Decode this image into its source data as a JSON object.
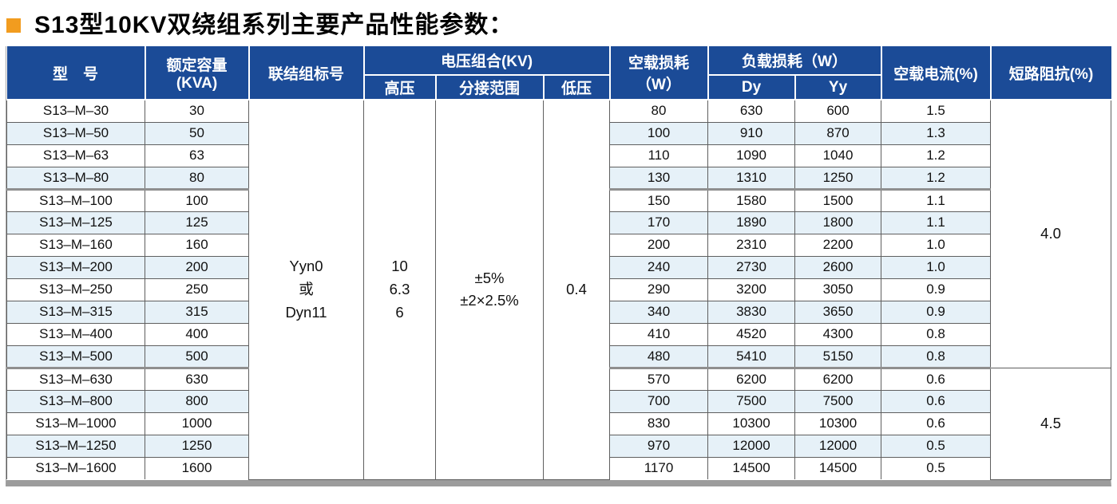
{
  "title": "S13型10KV双绕组系列主要产品性能参数：",
  "colors": {
    "header_bg": "#1b4b97",
    "header_text": "#ffffff",
    "row_stripe": "#e6f1f8",
    "title_bullet": "#f29c1f",
    "bottom_bar": "#9c9c9c"
  },
  "table": {
    "header": {
      "model": "型　号",
      "rated_capacity": "额定容量\n(KVA)",
      "connection_group": "联结组标号",
      "voltage_combination": "电压组合(KV)",
      "high_voltage": "高压",
      "tap_range": "分接范围",
      "low_voltage": "低压",
      "no_load_loss": "空载损耗\n（W）",
      "load_loss": "负载损耗（W）",
      "dy": "Dy",
      "yy": "Yy",
      "no_load_current": "空载电流(%)",
      "short_circuit_impedance": "短路阻抗(%)"
    },
    "merged": {
      "connection": "Yyn0\n或\nDyn11",
      "hv": "10\n6.3\n6",
      "tap_range": "±5%\n±2×2.5%",
      "lv": "0.4"
    },
    "impedance_groups": [
      {
        "value": "4.0",
        "row_start": 1,
        "row_count": 12
      },
      {
        "value": "4.5",
        "row_start": 13,
        "row_count": 5
      }
    ],
    "group_separators_after": [
      4,
      12
    ],
    "rows": [
      {
        "model": "S13–M–30",
        "kva": "30",
        "no_load_loss": "80",
        "dy": "630",
        "yy": "600",
        "no_load_current": "1.5"
      },
      {
        "model": "S13–M–50",
        "kva": "50",
        "no_load_loss": "100",
        "dy": "910",
        "yy": "870",
        "no_load_current": "1.3"
      },
      {
        "model": "S13–M–63",
        "kva": "63",
        "no_load_loss": "110",
        "dy": "1090",
        "yy": "1040",
        "no_load_current": "1.2"
      },
      {
        "model": "S13–M–80",
        "kva": "80",
        "no_load_loss": "130",
        "dy": "1310",
        "yy": "1250",
        "no_load_current": "1.2"
      },
      {
        "model": "S13–M–100",
        "kva": "100",
        "no_load_loss": "150",
        "dy": "1580",
        "yy": "1500",
        "no_load_current": "1.1"
      },
      {
        "model": "S13–M–125",
        "kva": "125",
        "no_load_loss": "170",
        "dy": "1890",
        "yy": "1800",
        "no_load_current": "1.1"
      },
      {
        "model": "S13–M–160",
        "kva": "160",
        "no_load_loss": "200",
        "dy": "2310",
        "yy": "2200",
        "no_load_current": "1.0"
      },
      {
        "model": "S13–M–200",
        "kva": "200",
        "no_load_loss": "240",
        "dy": "2730",
        "yy": "2600",
        "no_load_current": "1.0"
      },
      {
        "model": "S13–M–250",
        "kva": "250",
        "no_load_loss": "290",
        "dy": "3200",
        "yy": "3050",
        "no_load_current": "0.9"
      },
      {
        "model": "S13–M–315",
        "kva": "315",
        "no_load_loss": "340",
        "dy": "3830",
        "yy": "3650",
        "no_load_current": "0.9"
      },
      {
        "model": "S13–M–400",
        "kva": "400",
        "no_load_loss": "410",
        "dy": "4520",
        "yy": "4300",
        "no_load_current": "0.8"
      },
      {
        "model": "S13–M–500",
        "kva": "500",
        "no_load_loss": "480",
        "dy": "5410",
        "yy": "5150",
        "no_load_current": "0.8"
      },
      {
        "model": "S13–M–630",
        "kva": "630",
        "no_load_loss": "570",
        "dy": "6200",
        "yy": "6200",
        "no_load_current": "0.6"
      },
      {
        "model": "S13–M–800",
        "kva": "800",
        "no_load_loss": "700",
        "dy": "7500",
        "yy": "7500",
        "no_load_current": "0.6"
      },
      {
        "model": "S13–M–1000",
        "kva": "1000",
        "no_load_loss": "830",
        "dy": "10300",
        "yy": "10300",
        "no_load_current": "0.6"
      },
      {
        "model": "S13–M–1250",
        "kva": "1250",
        "no_load_loss": "970",
        "dy": "12000",
        "yy": "12000",
        "no_load_current": "0.5"
      },
      {
        "model": "S13–M–1600",
        "kva": "1600",
        "no_load_loss": "1170",
        "dy": "14500",
        "yy": "14500",
        "no_load_current": "0.5"
      }
    ]
  }
}
